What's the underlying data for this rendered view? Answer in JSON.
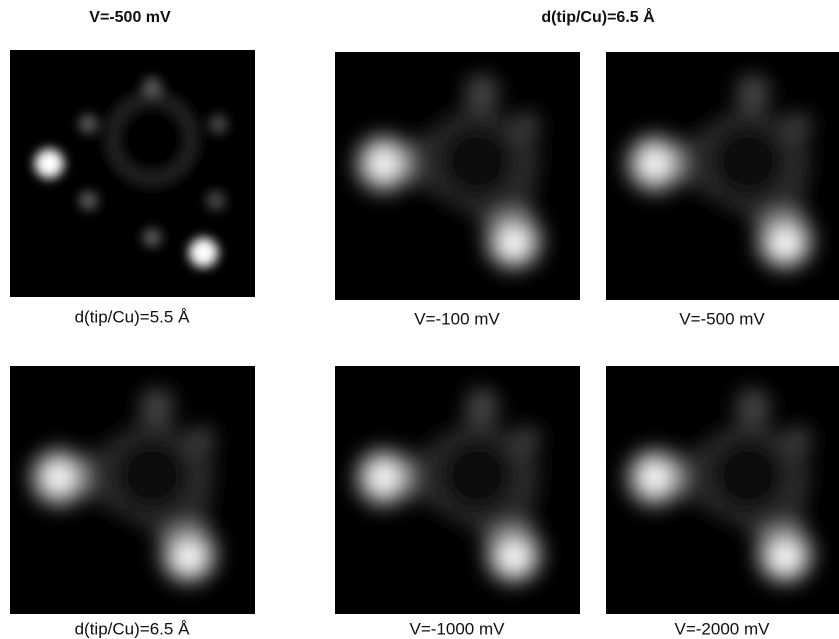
{
  "header": {
    "left_title": "V=-500 mV",
    "right_title": "d(tip/Cu)=6.5 Å"
  },
  "panels": [
    {
      "caption": "d(tip/Cu)=5.5 Å"
    },
    {
      "caption": "V=-100 mV"
    },
    {
      "caption": "V=-500 mV"
    },
    {
      "caption": "d(tip/Cu)=6.5 Å"
    },
    {
      "caption": "V=-1000 mV"
    },
    {
      "caption": "V=-2000 mV"
    }
  ]
}
